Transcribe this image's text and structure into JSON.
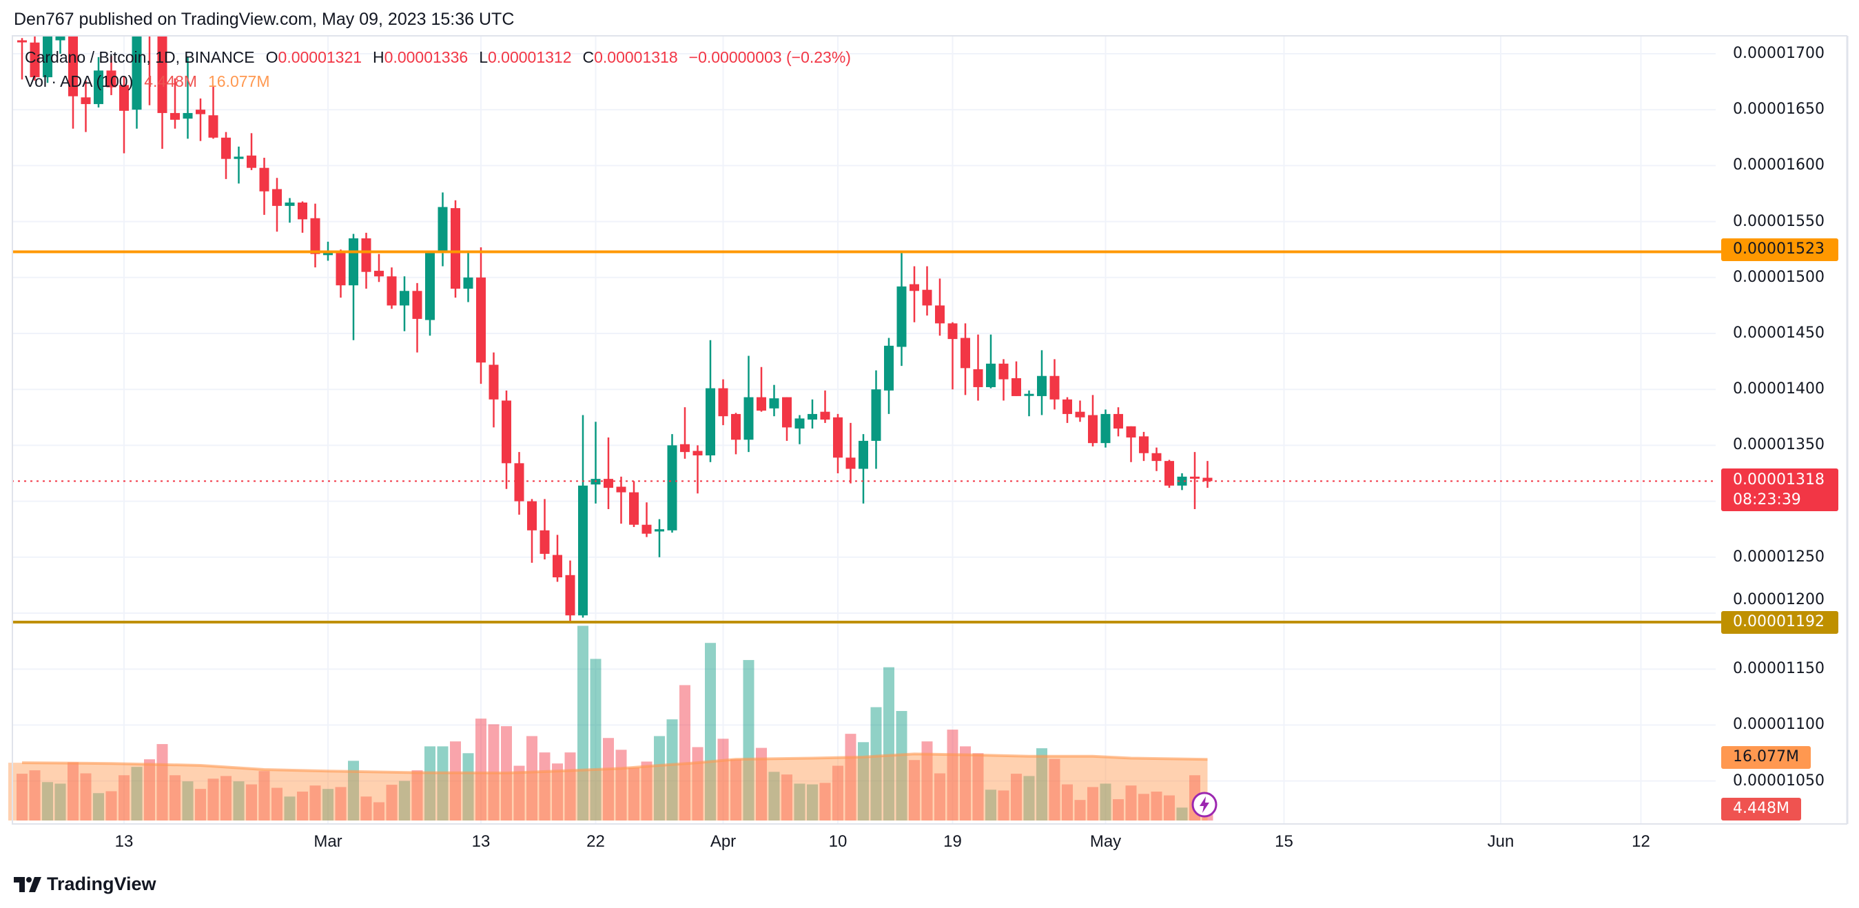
{
  "header": {
    "published": "Den767 published on TradingView.com, May 09, 2023 15:36 UTC"
  },
  "legend": {
    "symbol": "Cardano / Bitcoin, 1D, BINANCE",
    "o_label": "O",
    "o_value": "0.00001321",
    "h_label": "H",
    "h_value": "0.00001336",
    "l_label": "L",
    "l_value": "0.00001312",
    "c_label": "C",
    "c_value": "0.00001318",
    "change": "−0.00000003 (−0.23%)",
    "vol_title": "Vol · ADA (100)",
    "vol_value": "4.448M",
    "vol_ma_value": "16.077M"
  },
  "badges": {
    "resistance": "0.00001523",
    "last_price": "0.00001318",
    "countdown": "08:23:39",
    "support": "0.00001192",
    "vol_ma": "16.077M",
    "vol": "4.448M"
  },
  "colors": {
    "up": "#089981",
    "down": "#f23645",
    "resistance_line": "#ff9800",
    "support_line": "#bf9000",
    "vol_ma": "#ff9850",
    "last_price": "#f23645",
    "alert_icon": "#9c27b0"
  },
  "footer": {
    "brand": "TradingView",
    "logo_icon": "tradingview-logo-icon"
  },
  "icons": {
    "alert": "lightning-bolt-icon"
  },
  "chart_data": {
    "type": "candlestick",
    "title": "Cardano / Bitcoin, 1D, BINANCE",
    "grid": true,
    "y_axis": {
      "position": "right",
      "range": [
        1.03e-05,
        1.716e-05
      ],
      "ticks": [
        "0.00001700",
        "0.00001650",
        "0.00001600",
        "0.00001550",
        "0.00001500",
        "0.00001450",
        "0.00001400",
        "0.00001350",
        "0.00001250",
        "0.00001200",
        "0.00001150",
        "0.00001100",
        "0.00001050"
      ]
    },
    "x_axis": {
      "ticks": [
        {
          "label": "13",
          "date": "2023-02-13"
        },
        {
          "label": "Mar",
          "date": "2023-03-01"
        },
        {
          "label": "13",
          "date": "2023-03-13"
        },
        {
          "label": "22",
          "date": "2023-03-22"
        },
        {
          "label": "Apr",
          "date": "2023-04-01"
        },
        {
          "label": "10",
          "date": "2023-04-10"
        },
        {
          "label": "19",
          "date": "2023-04-19"
        },
        {
          "label": "May",
          "date": "2023-05-01"
        },
        {
          "label": "15",
          "date": "2023-05-15"
        },
        {
          "label": "Jun",
          "date": "2023-06-01"
        },
        {
          "label": "12",
          "date": "2023-06-12"
        }
      ]
    },
    "horizontal_lines": [
      {
        "price": 1.523e-05,
        "color": "#ff9800"
      },
      {
        "price": 1.192e-05,
        "color": "#bf9000"
      }
    ],
    "last_price": 1.318e-05,
    "start_date": "2023-02-05",
    "ohlc_units": "1e-8 BTC",
    "ohlc": [
      [
        1712,
        1714,
        1677,
        1711
      ],
      [
        1710,
        1716,
        1676,
        1679
      ],
      [
        1679,
        1725,
        1674,
        1718
      ],
      [
        1712,
        1730,
        1700,
        1722
      ],
      [
        1722,
        1730,
        1633,
        1662
      ],
      [
        1661,
        1676,
        1630,
        1655
      ],
      [
        1655,
        1697,
        1652,
        1685
      ],
      [
        1685,
        1698,
        1663,
        1670
      ],
      [
        1672,
        1680,
        1611,
        1649
      ],
      [
        1650,
        1728,
        1633,
        1718
      ],
      [
        1740,
        1750,
        1654,
        1728
      ],
      [
        1728,
        1740,
        1615,
        1647
      ],
      [
        1647,
        1678,
        1633,
        1641
      ],
      [
        1642,
        1697,
        1624,
        1647
      ],
      [
        1650,
        1660,
        1622,
        1646
      ],
      [
        1645,
        1671,
        1624,
        1625
      ],
      [
        1625,
        1630,
        1588,
        1606
      ],
      [
        1606,
        1617,
        1584,
        1608
      ],
      [
        1609,
        1629,
        1596,
        1598
      ],
      [
        1598,
        1607,
        1556,
        1577
      ],
      [
        1579,
        1589,
        1541,
        1564
      ],
      [
        1564,
        1571,
        1549,
        1567
      ],
      [
        1567,
        1568,
        1540,
        1552
      ],
      [
        1553,
        1566,
        1509,
        1521
      ],
      [
        1520,
        1532,
        1515,
        1524
      ],
      [
        1524,
        1525,
        1482,
        1493
      ],
      [
        1493,
        1539,
        1444,
        1535
      ],
      [
        1535,
        1540,
        1490,
        1505
      ],
      [
        1506,
        1521,
        1496,
        1501
      ],
      [
        1501,
        1509,
        1472,
        1475
      ],
      [
        1475,
        1501,
        1452,
        1488
      ],
      [
        1488,
        1495,
        1433,
        1463
      ],
      [
        1462,
        1524,
        1448,
        1522
      ],
      [
        1522,
        1576,
        1510,
        1563
      ],
      [
        1562,
        1569,
        1482,
        1490
      ],
      [
        1490,
        1523,
        1478,
        1500
      ],
      [
        1500,
        1527,
        1405,
        1424
      ],
      [
        1422,
        1433,
        1366,
        1391
      ],
      [
        1390,
        1399,
        1311,
        1334
      ],
      [
        1334,
        1344,
        1288,
        1300
      ],
      [
        1300,
        1302,
        1245,
        1274
      ],
      [
        1274,
        1302,
        1248,
        1253
      ],
      [
        1252,
        1270,
        1228,
        1232
      ],
      [
        1234,
        1247,
        1192,
        1198
      ],
      [
        1198,
        1377,
        1196,
        1314
      ],
      [
        1315,
        1371,
        1298,
        1320
      ],
      [
        1320,
        1357,
        1293,
        1312
      ],
      [
        1313,
        1322,
        1280,
        1308
      ],
      [
        1308,
        1318,
        1277,
        1279
      ],
      [
        1279,
        1299,
        1268,
        1271
      ],
      [
        1273,
        1284,
        1250,
        1275
      ],
      [
        1274,
        1360,
        1272,
        1350
      ],
      [
        1351,
        1384,
        1338,
        1344
      ],
      [
        1345,
        1350,
        1307,
        1341
      ],
      [
        1341,
        1444,
        1335,
        1401
      ],
      [
        1401,
        1409,
        1368,
        1376
      ],
      [
        1378,
        1379,
        1342,
        1355
      ],
      [
        1355,
        1430,
        1344,
        1393
      ],
      [
        1393,
        1420,
        1380,
        1381
      ],
      [
        1383,
        1404,
        1376,
        1392
      ],
      [
        1393,
        1393,
        1354,
        1366
      ],
      [
        1365,
        1377,
        1351,
        1374
      ],
      [
        1373,
        1391,
        1365,
        1378
      ],
      [
        1380,
        1399,
        1370,
        1373
      ],
      [
        1375,
        1378,
        1325,
        1339
      ],
      [
        1339,
        1370,
        1316,
        1329
      ],
      [
        1329,
        1360,
        1298,
        1354
      ],
      [
        1354,
        1417,
        1329,
        1400
      ],
      [
        1399,
        1446,
        1378,
        1439
      ],
      [
        1438,
        1522,
        1421,
        1492
      ],
      [
        1494,
        1510,
        1460,
        1488
      ],
      [
        1489,
        1510,
        1466,
        1475
      ],
      [
        1475,
        1499,
        1448,
        1459
      ],
      [
        1459,
        1460,
        1400,
        1445
      ],
      [
        1446,
        1459,
        1395,
        1419
      ],
      [
        1418,
        1449,
        1390,
        1402
      ],
      [
        1402,
        1449,
        1401,
        1423
      ],
      [
        1423,
        1427,
        1390,
        1409
      ],
      [
        1410,
        1425,
        1394,
        1394
      ],
      [
        1395,
        1399,
        1376,
        1396
      ],
      [
        1394,
        1435,
        1377,
        1412
      ],
      [
        1412,
        1427,
        1382,
        1391
      ],
      [
        1391,
        1393,
        1370,
        1378
      ],
      [
        1380,
        1390,
        1371,
        1375
      ],
      [
        1377,
        1395,
        1349,
        1352
      ],
      [
        1352,
        1382,
        1348,
        1378
      ],
      [
        1378,
        1384,
        1358,
        1365
      ],
      [
        1367,
        1367,
        1335,
        1357
      ],
      [
        1358,
        1362,
        1336,
        1343
      ],
      [
        1343,
        1348,
        1327,
        1336
      ],
      [
        1336,
        1337,
        1312,
        1314
      ],
      [
        1314,
        1325,
        1310,
        1322
      ],
      [
        1322,
        1344,
        1293,
        1321
      ],
      [
        1321,
        1336,
        1312,
        1318
      ]
    ],
    "volume_unit": "M",
    "volume": [
      12.3,
      13.2,
      10.1,
      9.7,
      15.3,
      12.4,
      7.2,
      7.7,
      11.9,
      14.1,
      16.1,
      20.1,
      11.9,
      10.3,
      8.3,
      11.0,
      11.7,
      10.3,
      9.5,
      13.0,
      8.6,
      6.3,
      7.6,
      9.2,
      8.3,
      8.8,
      15.7,
      6.3,
      4.8,
      9.4,
      10.4,
      13.2,
      19.5,
      19.5,
      20.8,
      17.7,
      26.8,
      25.3,
      24.8,
      14.4,
      22.2,
      17.9,
      15.0,
      17.9,
      51.2,
      42.5,
      21.7,
      18.6,
      13.9,
      15.5,
      22.2,
      26.6,
      35.6,
      19.3,
      46.7,
      21.5,
      16.1,
      42.2,
      19.1,
      12.8,
      12.1,
      9.7,
      9.5,
      9.9,
      14.4,
      22.8,
      20.6,
      29.8,
      40.3,
      28.8,
      15.9,
      20.8,
      12.4,
      23.9,
      19.5,
      17.7,
      8.1,
      7.9,
      12.3,
      11.7,
      19.0,
      16.2,
      9.5,
      5.4,
      8.8,
      9.7,
      5.6,
      9.2,
      7.0,
      7.6,
      6.6,
      3.4,
      11.9,
      4.448
    ],
    "volume_ma": {
      "length": 100,
      "points": [
        [
          "2023-02-05",
          15.2
        ],
        [
          "2023-02-12",
          15.0
        ],
        [
          "2023-02-19",
          14.5
        ],
        [
          "2023-02-24",
          13.4
        ],
        [
          "2023-03-01",
          13.0
        ],
        [
          "2023-03-08",
          12.6
        ],
        [
          "2023-03-15",
          12.5
        ],
        [
          "2023-03-19",
          13.0
        ],
        [
          "2023-03-24",
          13.7
        ],
        [
          "2023-03-27",
          14.5
        ],
        [
          "2023-03-30",
          15.2
        ],
        [
          "2023-04-02",
          16.1
        ],
        [
          "2023-04-08",
          16.4
        ],
        [
          "2023-04-12",
          16.7
        ],
        [
          "2023-04-16",
          17.5
        ],
        [
          "2023-04-20",
          17.3
        ],
        [
          "2023-04-25",
          16.9
        ],
        [
          "2023-04-30",
          16.9
        ],
        [
          "2023-05-03",
          16.4
        ],
        [
          "2023-05-09",
          16.077
        ]
      ]
    }
  }
}
